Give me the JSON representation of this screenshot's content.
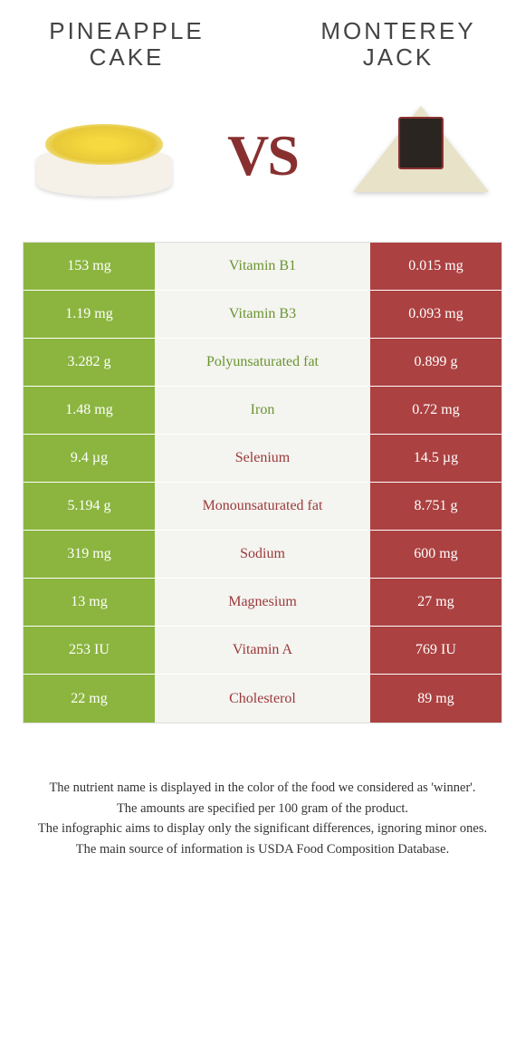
{
  "header": {
    "left_title": "PINEAPPLE CAKE",
    "right_title": "MONTEREY JACK",
    "vs": "VS"
  },
  "colors": {
    "left": "#8bb53f",
    "right": "#ac4141",
    "left_text": "#6a9530",
    "right_text": "#9a3a3a",
    "mid_bg": "#f4f4f0"
  },
  "rows": [
    {
      "left": "153 mg",
      "label": "Vitamin B1",
      "right": "0.015 mg",
      "winner": "left"
    },
    {
      "left": "1.19 mg",
      "label": "Vitamin B3",
      "right": "0.093 mg",
      "winner": "left"
    },
    {
      "left": "3.282 g",
      "label": "Polyunsaturated fat",
      "right": "0.899 g",
      "winner": "left"
    },
    {
      "left": "1.48 mg",
      "label": "Iron",
      "right": "0.72 mg",
      "winner": "left"
    },
    {
      "left": "9.4 µg",
      "label": "Selenium",
      "right": "14.5 µg",
      "winner": "right"
    },
    {
      "left": "5.194 g",
      "label": "Monounsaturated fat",
      "right": "8.751 g",
      "winner": "right"
    },
    {
      "left": "319 mg",
      "label": "Sodium",
      "right": "600 mg",
      "winner": "right"
    },
    {
      "left": "13 mg",
      "label": "Magnesium",
      "right": "27 mg",
      "winner": "right"
    },
    {
      "left": "253 IU",
      "label": "Vitamin A",
      "right": "769 IU",
      "winner": "right"
    },
    {
      "left": "22 mg",
      "label": "Cholesterol",
      "right": "89 mg",
      "winner": "right"
    }
  ],
  "footer": {
    "line1": "The nutrient name is displayed in the color of the food we considered as 'winner'.",
    "line2": "The amounts are specified per 100 gram of the product.",
    "line3": "The infographic aims to display only the significant differences, ignoring minor ones.",
    "line4": "The main source of information is USDA Food Composition Database."
  }
}
